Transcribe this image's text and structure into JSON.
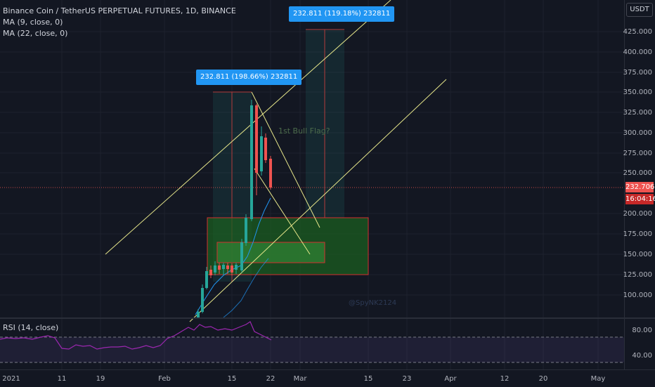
{
  "legend": {
    "symbol": "Binance Coin / TetherUS PERPETUAL FUTURES, 1D, BINANCE",
    "ma1": "MA (9, close, 0)",
    "ma2": "MA (22, close, 0)"
  },
  "currency": "USDT",
  "price_axis": [
    "425.000",
    "400.000",
    "375.000",
    "350.000",
    "325.000",
    "300.000",
    "275.000",
    "250.000",
    "200.000",
    "175.000",
    "150.000",
    "125.000",
    "100.000"
  ],
  "last_price": "232.706",
  "countdown": "16:04:16",
  "rsi": {
    "title": "RSI (14, close)",
    "levels": [
      "80.00",
      "40.00"
    ]
  },
  "time_axis": [
    "2021",
    "11",
    "19",
    "Feb",
    "15",
    "22",
    "Mar",
    "15",
    "23",
    "Apr",
    "12",
    "20",
    "May"
  ],
  "callouts": {
    "upper": "232.811 (119.18%) 232811",
    "lower": "232.811 (198.66%) 232811"
  },
  "annotation": "1st Bull Flag?",
  "watermark": "@SpyNK2124",
  "colors": {
    "up": "#26a69a",
    "down": "#ef5350",
    "ma1": "#2196f3",
    "trend": "#e6e68a",
    "zone": "#1b5e20",
    "rsi": "#9c27b0",
    "callout": "#2196f3"
  }
}
